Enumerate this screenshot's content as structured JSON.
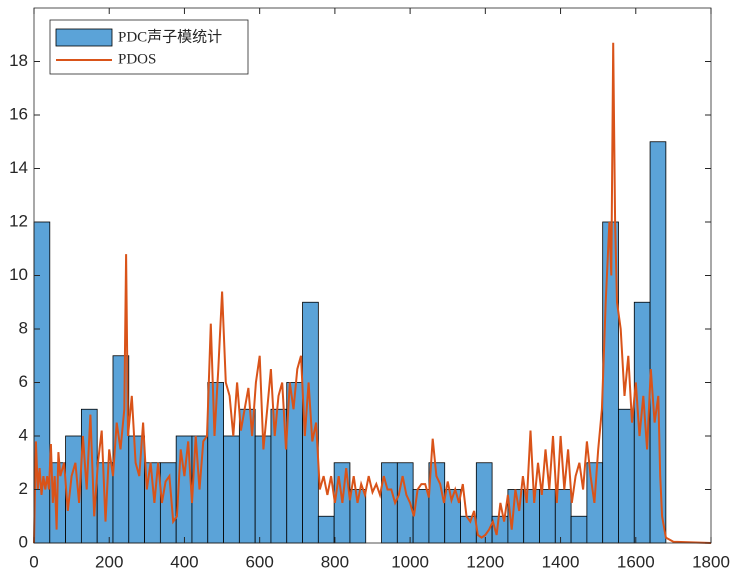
{
  "chart_data": {
    "type": "histogram",
    "bins": [
      0,
      42,
      84,
      126,
      168,
      210,
      252,
      294,
      336,
      378,
      420,
      462,
      504,
      546,
      588,
      630,
      672,
      714,
      756,
      798,
      840,
      882,
      924,
      966,
      1008,
      1050,
      1092,
      1134,
      1176,
      1218,
      1260,
      1302,
      1344,
      1386,
      1428,
      1470,
      1512,
      1554,
      1596,
      1638,
      1680
    ],
    "counts": [
      12,
      3,
      4,
      5,
      3,
      7,
      4,
      3,
      3,
      4,
      4,
      6,
      4,
      5,
      4,
      5,
      6,
      9,
      1,
      3,
      2,
      0,
      3,
      3,
      2,
      3,
      2,
      1,
      3,
      1,
      2,
      2,
      2,
      2,
      1,
      3,
      12,
      5,
      9,
      15
    ],
    "hist_name": "PDC声子模统计",
    "hist_color": "#5ba3d8",
    "line": {
      "name": "PDOS",
      "color": "#d95319",
      "x": [
        0,
        5,
        10,
        15,
        20,
        25,
        30,
        35,
        40,
        45,
        50,
        55,
        60,
        65,
        70,
        80,
        90,
        100,
        110,
        120,
        130,
        140,
        150,
        160,
        170,
        180,
        190,
        200,
        210,
        220,
        230,
        240,
        245,
        250,
        260,
        270,
        280,
        290,
        300,
        310,
        320,
        330,
        340,
        350,
        360,
        370,
        380,
        390,
        400,
        410,
        420,
        430,
        440,
        450,
        460,
        470,
        480,
        490,
        500,
        510,
        520,
        530,
        540,
        550,
        560,
        570,
        580,
        590,
        600,
        610,
        620,
        630,
        640,
        650,
        660,
        670,
        680,
        690,
        700,
        710,
        720,
        730,
        740,
        750,
        760,
        770,
        780,
        790,
        800,
        810,
        820,
        830,
        840,
        850,
        860,
        870,
        880,
        890,
        900,
        910,
        920,
        930,
        940,
        950,
        960,
        970,
        980,
        990,
        1000,
        1010,
        1020,
        1030,
        1040,
        1050,
        1060,
        1070,
        1080,
        1090,
        1100,
        1110,
        1120,
        1130,
        1140,
        1150,
        1160,
        1170,
        1180,
        1190,
        1200,
        1210,
        1220,
        1230,
        1240,
        1250,
        1260,
        1270,
        1280,
        1290,
        1300,
        1310,
        1320,
        1330,
        1340,
        1350,
        1360,
        1370,
        1380,
        1390,
        1400,
        1410,
        1420,
        1430,
        1440,
        1450,
        1460,
        1470,
        1480,
        1490,
        1500,
        1510,
        1520,
        1530,
        1535,
        1540,
        1545,
        1550,
        1560,
        1570,
        1580,
        1590,
        1600,
        1610,
        1620,
        1630,
        1640,
        1650,
        1660,
        1665,
        1670,
        1680,
        1700,
        1800
      ],
      "values": [
        0,
        3.8,
        2,
        2.8,
        1.8,
        2.5,
        2,
        2.5,
        2,
        3.7,
        1.5,
        2.5,
        0.5,
        3.4,
        2.5,
        3,
        1.2,
        2.5,
        3,
        1.5,
        4,
        2,
        4.8,
        1,
        3,
        4.2,
        0.8,
        3.5,
        2.5,
        4.5,
        3.5,
        5,
        10.8,
        4,
        5.5,
        3,
        2.5,
        4.5,
        2,
        3,
        1.5,
        3,
        1.5,
        2.3,
        2.5,
        0.8,
        1,
        3.5,
        2.5,
        3.8,
        1.5,
        4,
        2,
        3.8,
        4,
        8.2,
        4,
        6.5,
        9.4,
        6,
        5.5,
        4,
        6,
        4.2,
        5,
        5.8,
        4,
        6,
        7,
        3.5,
        5,
        6.5,
        4,
        5.5,
        6,
        3.5,
        6,
        5,
        6.5,
        7,
        4,
        6,
        3.8,
        4.5,
        2,
        2.5,
        1.8,
        2.5,
        1.5,
        2.5,
        1.5,
        2.8,
        1.6,
        2.5,
        1.5,
        2.2,
        1.8,
        2.5,
        1.9,
        2.2,
        1.8,
        2.5,
        2,
        2,
        1.5,
        1.8,
        2.5,
        1.8,
        1.5,
        1,
        2,
        2.2,
        2.2,
        1.7,
        3.9,
        2.5,
        2.2,
        1.5,
        2.3,
        1.6,
        2,
        1.5,
        2.2,
        1,
        0.8,
        1.2,
        0.3,
        0.2,
        0.3,
        0.5,
        0.8,
        0.3,
        1.5,
        0.8,
        1.8,
        0.5,
        2,
        1.2,
        2.5,
        1.5,
        4.2,
        1.5,
        3,
        1.8,
        3.5,
        2,
        4,
        1.5,
        4,
        2,
        3.5,
        1.5,
        2.5,
        3,
        2,
        3.8,
        2.5,
        1.5,
        3.5,
        5,
        9,
        12,
        10,
        18.7,
        12,
        9,
        8,
        5.5,
        7,
        4.5,
        6,
        4,
        5.5,
        3.5,
        6.5,
        4.5,
        5.5,
        2.5,
        1,
        0.2,
        0.05,
        0
      ]
    },
    "xlim": [
      0,
      1800
    ],
    "xticks": [
      0,
      200,
      400,
      600,
      800,
      1000,
      1200,
      1400,
      1600,
      1800
    ],
    "ylim": [
      0,
      20
    ],
    "yticks": [
      0,
      2,
      4,
      6,
      8,
      10,
      12,
      14,
      16,
      18
    ],
    "legend": "upper left"
  }
}
